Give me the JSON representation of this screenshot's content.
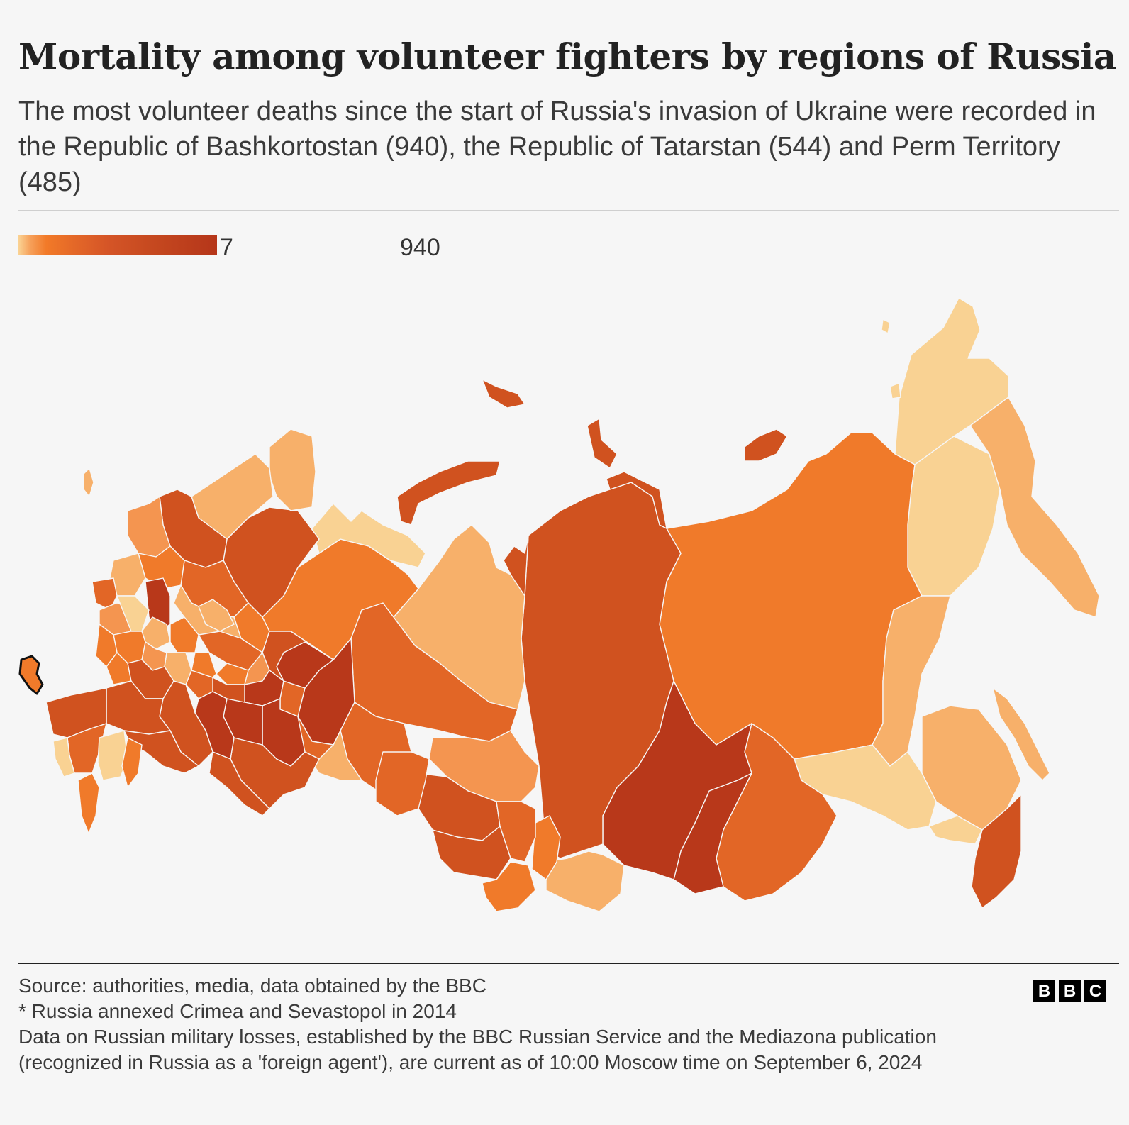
{
  "title": "Mortality among volunteer fighters by regions of Russia",
  "subtitle": "The most volunteer deaths since the start of Russia's invasion of Ukraine were recorded in the Republic of Bashkortostan (940), the Republic of Tatarstan (544) and Perm Territory (485)",
  "legend": {
    "min_label": "7",
    "max_label": "940",
    "min_color": "#fad394",
    "max_color": "#b5361a"
  },
  "colors": {
    "very_light": "#f9d293",
    "light": "#f7b06a",
    "light_mid": "#f49550",
    "mid": "#f07a2a",
    "mid_dark": "#e26626",
    "dark": "#d0521f",
    "darkest": "#b8381a",
    "crimea_outline": "#111111"
  },
  "highlighted_region": "Crimea",
  "footer": {
    "source": "Source: authorities, media, data obtained by the BBC",
    "note": "* Russia annexed Crimea and Sevastopol in 2014",
    "data_note": "Data on Russian military losses, established by the BBC Russian Service and the Mediazona publication (recognized in Russia as a 'foreign agent'), are current as of 10:00 Moscow time on September 6, 2024"
  },
  "logo": {
    "letters": [
      "B",
      "B",
      "C"
    ]
  }
}
